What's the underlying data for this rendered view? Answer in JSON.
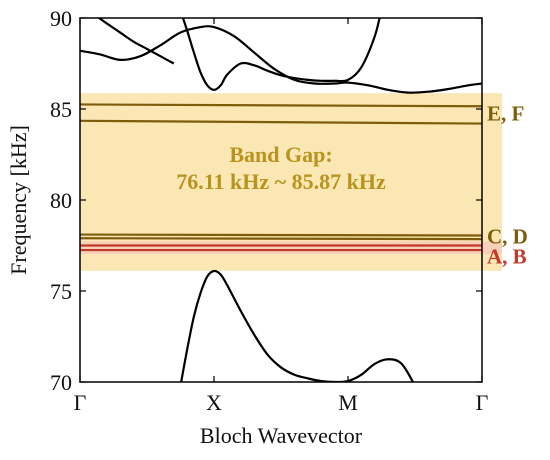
{
  "chart_data": {
    "type": "line",
    "title": "",
    "xlabel": "Bloch Wavevector",
    "ylabel": "Frequency [kHz]",
    "xlim": [
      0,
      3
    ],
    "ylim": [
      70,
      90
    ],
    "x_ticks": [
      {
        "value": 0,
        "label": "Γ"
      },
      {
        "value": 1,
        "label": "X"
      },
      {
        "value": 2,
        "label": "M"
      },
      {
        "value": 3,
        "label": "Γ"
      }
    ],
    "y_ticks": [
      {
        "value": 70,
        "label": "70"
      },
      {
        "value": 75,
        "label": "75"
      },
      {
        "value": 80,
        "label": "80"
      },
      {
        "value": 85,
        "label": "85"
      },
      {
        "value": 90,
        "label": "90"
      }
    ],
    "band_gap": {
      "lower": 76.11,
      "upper": 85.87,
      "title": "Band Gap:",
      "range_text": "76.11 kHz ~ 85.87 kHz",
      "fill_color": "#fbe7b4",
      "text_color": "#b8941f"
    },
    "flat_bands": [
      {
        "name": "A",
        "values": [
          77.25,
          77.25
        ],
        "color": "#c0392b"
      },
      {
        "name": "B",
        "values": [
          77.5,
          77.5
        ],
        "color": "#c0392b"
      },
      {
        "name": "C",
        "values": [
          77.9,
          77.85
        ],
        "color": "#7d5c0c"
      },
      {
        "name": "D",
        "values": [
          78.1,
          78.05
        ],
        "color": "#7d5c0c"
      },
      {
        "name": "E",
        "values": [
          85.25,
          85.15
        ],
        "color": "#7d5c0c"
      },
      {
        "name": "F",
        "values": [
          84.35,
          84.2
        ],
        "color": "#7d5c0c"
      }
    ],
    "mode_labels": [
      {
        "text": "E, F",
        "y": 84.75,
        "color": "#7d5c0c"
      },
      {
        "text": "C, D",
        "y": 78.0,
        "color": "#7d5c0c"
      },
      {
        "text": "A, B",
        "y": 76.9,
        "color": "#c0392b"
      }
    ],
    "series": [
      {
        "color": "#000000",
        "x": [
          0,
          0.15,
          0.3,
          0.45,
          0.6,
          0.75,
          0.9,
          1.0,
          1.15,
          1.3,
          1.45,
          1.6,
          1.75,
          1.9,
          2.0,
          2.15,
          2.3,
          2.45,
          2.6,
          2.75,
          2.9,
          3.0
        ],
        "y": [
          88.2,
          88.0,
          87.7,
          87.9,
          88.5,
          89.2,
          89.5,
          89.5,
          89.0,
          88.1,
          87.2,
          86.6,
          86.4,
          86.4,
          86.45,
          86.3,
          86.05,
          85.9,
          85.95,
          86.1,
          86.3,
          86.4
        ]
      },
      {
        "color": "#000000",
        "x": [
          0,
          0.1,
          0.2,
          0.3,
          0.4,
          0.5,
          0.6,
          0.7
        ],
        "y": [
          90.5,
          90.2,
          89.7,
          89.2,
          88.7,
          88.3,
          87.9,
          87.5
        ]
      },
      {
        "color": "#000000",
        "x": [
          0.75,
          0.8,
          0.85,
          0.9,
          0.95,
          1.0,
          1.05,
          1.1,
          1.2,
          1.3,
          1.4,
          1.5,
          1.6,
          1.7,
          1.8,
          1.9,
          2.0,
          2.1,
          2.2,
          2.25
        ],
        "y": [
          90.4,
          89.3,
          88.1,
          87.0,
          86.3,
          86.05,
          86.3,
          86.9,
          87.5,
          87.4,
          87.1,
          86.85,
          86.7,
          86.6,
          86.55,
          86.55,
          86.6,
          87.3,
          89.0,
          90.5
        ]
      },
      {
        "color": "#000000",
        "x": [
          0.75,
          0.8,
          0.85,
          0.9,
          0.95,
          1.0,
          1.05,
          1.1,
          1.2,
          1.3,
          1.4,
          1.5,
          1.6,
          1.7,
          1.8,
          1.9,
          2.0,
          2.1,
          2.2,
          2.3,
          2.4,
          2.5
        ],
        "y": [
          69.8,
          71.8,
          73.6,
          74.9,
          75.8,
          76.1,
          75.9,
          75.3,
          73.9,
          72.6,
          71.5,
          70.8,
          70.4,
          70.2,
          70.05,
          70.0,
          70.05,
          70.4,
          71.0,
          71.25,
          71.0,
          69.8
        ]
      }
    ]
  }
}
